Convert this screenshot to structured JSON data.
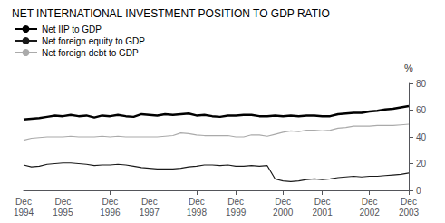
{
  "chart_data": {
    "type": "line",
    "title": "NET INTERNATIONAL INVESTMENT POSITION TO GDP RATIO",
    "ylabel": "%",
    "categories": [
      "Dec\n1994",
      null,
      null,
      null,
      null,
      "Dec\n1995",
      null,
      null,
      null,
      null,
      null,
      "Dec\n1996",
      null,
      null,
      null,
      null,
      "Dec\n1997",
      null,
      null,
      null,
      null,
      null,
      "Dec\n1998",
      null,
      null,
      null,
      null,
      "Dec\n1999",
      null,
      null,
      null,
      null,
      null,
      "Dec\n2000",
      null,
      null,
      null,
      null,
      "Dec\n2001",
      null,
      null,
      null,
      null,
      null,
      "Dec\n2002",
      null,
      null,
      null,
      null,
      "Dec\n2003"
    ],
    "series": [
      {
        "name": "Net IIP to GDP",
        "color": "#000000",
        "values": [
          53.0,
          53.5,
          54.0,
          55.0,
          56.0,
          55.5,
          56.5,
          55.5,
          56.0,
          54.5,
          56.0,
          55.5,
          56.5,
          55.5,
          55.0,
          57.0,
          56.5,
          56.0,
          57.0,
          56.5,
          57.0,
          57.5,
          56.0,
          56.5,
          55.5,
          55.0,
          56.0,
          56.0,
          56.5,
          56.5,
          55.5,
          55.5,
          56.0,
          55.5,
          56.0,
          55.5,
          56.0,
          56.0,
          55.5,
          55.5,
          57.0,
          57.5,
          58.0,
          58.0,
          59.0,
          59.5,
          60.5,
          61.0,
          62.0,
          63.0
        ]
      },
      {
        "name": "Net foreign equity to GDP",
        "color": "#1a1a1a",
        "values": [
          19.0,
          17.5,
          18.0,
          19.5,
          20.0,
          20.5,
          20.5,
          20.0,
          19.5,
          18.5,
          19.0,
          19.0,
          19.5,
          19.0,
          18.0,
          17.0,
          16.5,
          16.0,
          16.0,
          16.0,
          16.5,
          17.5,
          18.0,
          19.0,
          19.0,
          18.5,
          19.0,
          18.0,
          18.0,
          18.5,
          18.0,
          18.5,
          8.5,
          7.0,
          6.5,
          7.0,
          8.0,
          8.5,
          8.0,
          8.5,
          9.5,
          10.0,
          10.5,
          10.0,
          10.5,
          10.5,
          11.0,
          11.5,
          12.0,
          13.0
        ]
      },
      {
        "name": "Net foreign debt to GDP",
        "color": "#aaaaaa",
        "values": [
          37.5,
          39.0,
          39.5,
          40.0,
          40.0,
          40.0,
          40.5,
          40.0,
          40.0,
          40.0,
          40.5,
          40.0,
          40.5,
          40.0,
          40.0,
          40.0,
          40.0,
          40.0,
          40.5,
          41.0,
          43.0,
          42.5,
          41.5,
          41.0,
          41.0,
          41.0,
          41.0,
          40.0,
          40.0,
          41.5,
          41.5,
          40.5,
          42.0,
          43.5,
          44.5,
          44.0,
          45.0,
          45.0,
          44.5,
          45.0,
          46.5,
          47.0,
          48.0,
          48.0,
          48.0,
          48.5,
          48.5,
          48.5,
          49.0,
          49.5
        ]
      }
    ],
    "ylim": [
      0,
      80
    ],
    "yticks": [
      0,
      20,
      40,
      60,
      80
    ],
    "grid": false,
    "legend": "upper left"
  }
}
